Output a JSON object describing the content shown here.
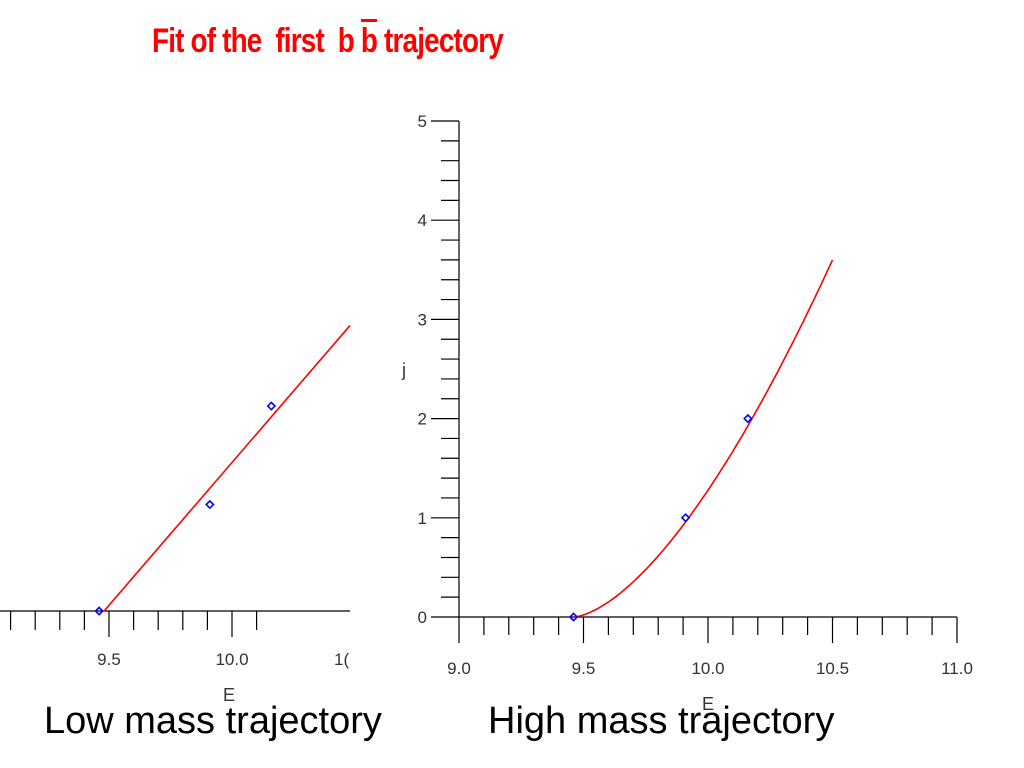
{
  "title": {
    "prefix": "Fit of the  first  b ",
    "overbar": "b",
    "suffix": " trajectory"
  },
  "captions": {
    "left": "Low mass trajectory",
    "right": "High mass trajectory"
  },
  "colors": {
    "title": "#ff0000",
    "fit_line": "#ff0000",
    "markers": "#0000ff",
    "axes": "#000000"
  },
  "chart_data": [
    {
      "type": "line",
      "title": "",
      "xlabel": "E",
      "ylabel": "",
      "xlim": [
        8.6,
        10.5
      ],
      "ylim": [
        0,
        3
      ],
      "x_tick_labels": [
        "9.5",
        "10.0",
        "1("
      ],
      "grid": false,
      "series": [
        {
          "kind": "points",
          "x": [
            9.46,
            9.91,
            10.16
          ],
          "y": [
            0,
            1,
            2
          ]
        },
        {
          "kind": "fit",
          "x": [
            9.48,
            10.48
          ],
          "y": [
            0,
            2.87
          ]
        }
      ]
    },
    {
      "type": "line",
      "title": "",
      "xlabel": "E",
      "ylabel": "j",
      "xlim": [
        9.0,
        11.0
      ],
      "ylim": [
        0,
        5
      ],
      "x_ticks": [
        9.0,
        9.5,
        10.0,
        10.5,
        11.0
      ],
      "x_tick_labels": [
        "9.0",
        "9.5",
        "10.0",
        "10.5",
        "11.0"
      ],
      "y_ticks": [
        0,
        1,
        2,
        3,
        4,
        5
      ],
      "y_tick_labels": [
        "0",
        "1",
        "2",
        "3",
        "4",
        "5"
      ],
      "grid": false,
      "series": [
        {
          "kind": "points",
          "x": [
            9.46,
            9.91,
            10.16
          ],
          "y": [
            0,
            1,
            2
          ]
        },
        {
          "kind": "fit",
          "x0": 9.46,
          "x1": 10.5,
          "y_end": 3.6
        }
      ]
    }
  ]
}
